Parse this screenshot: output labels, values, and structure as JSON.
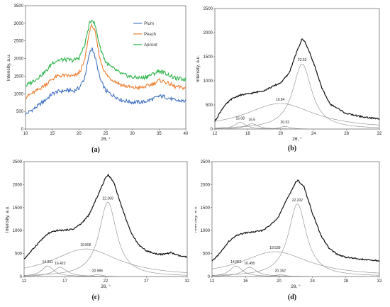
{
  "panels": [
    {
      "id": "a",
      "label": "(a)",
      "xlabel": "2θ, °",
      "ylabel": "Intensity, a.u.",
      "xlim": [
        10,
        40
      ],
      "ylim": [
        0,
        3500
      ],
      "xticks": [
        10,
        15,
        20,
        25,
        30,
        35,
        40
      ],
      "yticks": [
        0,
        500,
        1000,
        1500,
        2000,
        2500,
        3000,
        3500
      ],
      "series": [
        {
          "name": "Plum",
          "color": "#4472c4",
          "points": [
            [
              10,
              420
            ],
            [
              12,
              620
            ],
            [
              14,
              860
            ],
            [
              15,
              1000
            ],
            [
              16,
              1060
            ],
            [
              17,
              1080
            ],
            [
              18,
              1100
            ],
            [
              19,
              1080
            ],
            [
              20,
              1160
            ],
            [
              21,
              1420
            ],
            [
              22,
              2150
            ],
            [
              22.5,
              2300
            ],
            [
              23,
              2050
            ],
            [
              24,
              1400
            ],
            [
              25,
              1090
            ],
            [
              26,
              990
            ],
            [
              28,
              820
            ],
            [
              30,
              760
            ],
            [
              32,
              760
            ],
            [
              34,
              860
            ],
            [
              35,
              930
            ],
            [
              36,
              920
            ],
            [
              38,
              810
            ],
            [
              40,
              790
            ]
          ]
        },
        {
          "name": "Peach",
          "color": "#ed7d31",
          "points": [
            [
              10,
              900
            ],
            [
              12,
              1080
            ],
            [
              14,
              1290
            ],
            [
              15,
              1420
            ],
            [
              16,
              1500
            ],
            [
              17,
              1520
            ],
            [
              18,
              1510
            ],
            [
              19,
              1500
            ],
            [
              20,
              1580
            ],
            [
              21,
              1900
            ],
            [
              22,
              2800
            ],
            [
              22.5,
              2950
            ],
            [
              23,
              2750
            ],
            [
              24,
              1950
            ],
            [
              25,
              1560
            ],
            [
              26,
              1420
            ],
            [
              28,
              1250
            ],
            [
              30,
              1170
            ],
            [
              32,
              1180
            ],
            [
              34,
              1290
            ],
            [
              35,
              1380
            ],
            [
              36,
              1350
            ],
            [
              38,
              1200
            ],
            [
              40,
              1160
            ]
          ]
        },
        {
          "name": "Apricot",
          "color": "#2cb34a",
          "points": [
            [
              10,
              1220
            ],
            [
              12,
              1420
            ],
            [
              14,
              1660
            ],
            [
              15,
              1880
            ],
            [
              16,
              1950
            ],
            [
              17,
              1970
            ],
            [
              18,
              1960
            ],
            [
              19,
              1950
            ],
            [
              20,
              2020
            ],
            [
              21,
              2340
            ],
            [
              22,
              3000
            ],
            [
              22.5,
              3120
            ],
            [
              23,
              2950
            ],
            [
              24,
              2300
            ],
            [
              25,
              1900
            ],
            [
              26,
              1760
            ],
            [
              28,
              1560
            ],
            [
              30,
              1470
            ],
            [
              32,
              1450
            ],
            [
              34,
              1570
            ],
            [
              35,
              1650
            ],
            [
              36,
              1600
            ],
            [
              38,
              1440
            ],
            [
              40,
              1400
            ]
          ]
        }
      ]
    },
    {
      "id": "b",
      "label": "(b)",
      "xlabel": "2θ, °",
      "ylabel": "Intensity, a.u.",
      "xlim": [
        12,
        32
      ],
      "ylim": [
        0,
        2500
      ],
      "xticks": [
        12,
        16,
        20,
        24,
        28,
        32
      ],
      "yticks": [
        0,
        500,
        1000,
        1500,
        2000,
        2500
      ],
      "peaks": [
        {
          "center": 15.08,
          "label": "15.08",
          "height": 140,
          "width": 0.8
        },
        {
          "center": 16.5,
          "label": "16.5",
          "height": 110,
          "width": 0.9
        },
        {
          "center": 19.94,
          "label": "19.94",
          "height": 530,
          "width": 5.2
        },
        {
          "center": 20.52,
          "label": "20.52",
          "height": 55,
          "width": 0.7
        },
        {
          "center": 22.62,
          "label": "22.62",
          "height": 1350,
          "width": 1.4
        }
      ],
      "measured": [
        [
          12,
          160
        ],
        [
          13,
          450
        ],
        [
          14,
          620
        ],
        [
          15,
          700
        ],
        [
          16,
          730
        ],
        [
          17,
          760
        ],
        [
          18,
          800
        ],
        [
          19,
          880
        ],
        [
          20,
          960
        ],
        [
          21,
          1150
        ],
        [
          22,
          1620
        ],
        [
          22.6,
          1870
        ],
        [
          23,
          1800
        ],
        [
          24,
          1380
        ],
        [
          25,
          850
        ],
        [
          26,
          520
        ],
        [
          28,
          320
        ],
        [
          30,
          250
        ],
        [
          32,
          210
        ]
      ]
    },
    {
      "id": "c",
      "label": "(c)",
      "xlabel": "2θ, °",
      "ylabel": "Intensity, a.u.",
      "xlim": [
        12,
        32
      ],
      "ylim": [
        0,
        2500
      ],
      "xticks": [
        12,
        17,
        22,
        27,
        32
      ],
      "yticks": [
        0,
        500,
        1000,
        1500,
        2000,
        2500
      ],
      "peaks": [
        {
          "center": 14.891,
          "label": "14.891",
          "height": 230,
          "width": 0.9
        },
        {
          "center": 16.422,
          "label": "16.422",
          "height": 200,
          "width": 1.0
        },
        {
          "center": 19.556,
          "label": "19.556",
          "height": 600,
          "width": 5.0
        },
        {
          "center": 20.986,
          "label": "20.986",
          "height": 40,
          "width": 0.7
        },
        {
          "center": 22.269,
          "label": "22.269",
          "height": 1620,
          "width": 1.3
        }
      ],
      "measured": [
        [
          12,
          380
        ],
        [
          13,
          580
        ],
        [
          14,
          780
        ],
        [
          15,
          940
        ],
        [
          16,
          1000
        ],
        [
          17,
          1010
        ],
        [
          18,
          1030
        ],
        [
          19,
          1150
        ],
        [
          20,
          1350
        ],
        [
          21,
          1750
        ],
        [
          22,
          2150
        ],
        [
          22.3,
          2220
        ],
        [
          23,
          2050
        ],
        [
          24,
          1500
        ],
        [
          25,
          1000
        ],
        [
          26,
          700
        ],
        [
          27,
          560
        ],
        [
          28,
          500
        ],
        [
          29,
          480
        ],
        [
          30,
          520
        ],
        [
          31,
          450
        ],
        [
          32,
          420
        ]
      ]
    },
    {
      "id": "d",
      "label": "(d)",
      "xlabel": "2θ, °",
      "ylabel": "Intensity, a.u.",
      "xlim": [
        12,
        32
      ],
      "ylim": [
        0,
        2500
      ],
      "xticks": [
        12,
        16,
        20,
        24,
        28,
        32
      ],
      "yticks": [
        0,
        500,
        1000,
        1500,
        2000,
        2500
      ],
      "peaks": [
        {
          "center": 14.869,
          "label": "14.869",
          "height": 230,
          "width": 0.9
        },
        {
          "center": 16.495,
          "label": "16.495",
          "height": 200,
          "width": 1.0
        },
        {
          "center": 19.539,
          "label": "19.539",
          "height": 540,
          "width": 5.0
        },
        {
          "center": 20.162,
          "label": "20.162",
          "height": 40,
          "width": 0.7
        },
        {
          "center": 22.202,
          "label": "22.202",
          "height": 1580,
          "width": 1.3
        }
      ],
      "measured": [
        [
          12,
          330
        ],
        [
          13,
          520
        ],
        [
          14,
          760
        ],
        [
          15,
          900
        ],
        [
          16,
          950
        ],
        [
          17,
          970
        ],
        [
          18,
          1000
        ],
        [
          19,
          1120
        ],
        [
          20,
          1320
        ],
        [
          21,
          1700
        ],
        [
          22,
          2050
        ],
        [
          22.3,
          2090
        ],
        [
          23,
          1950
        ],
        [
          24,
          1380
        ],
        [
          25,
          900
        ],
        [
          26,
          610
        ],
        [
          27,
          480
        ],
        [
          28,
          420
        ],
        [
          30,
          370
        ],
        [
          32,
          340
        ]
      ]
    }
  ],
  "chart_data": [
    {
      "type": "line",
      "panel": "(a)",
      "xlabel": "2θ, °",
      "ylabel": "Intensity, a.u.",
      "xlim": [
        10,
        40
      ],
      "ylim": [
        0,
        3500
      ],
      "legend": "top-right",
      "series": [
        {
          "name": "Plum"
        },
        {
          "name": "Peach"
        },
        {
          "name": "Apricot"
        }
      ]
    },
    {
      "type": "line",
      "panel": "(b)",
      "xlabel": "2θ, °",
      "ylabel": "Intensity, a.u.",
      "xlim": [
        12,
        32
      ],
      "ylim": [
        0,
        2500
      ],
      "peak_labels": [
        "15.08",
        "16.5",
        "19.94",
        "20.52",
        "22.62"
      ]
    },
    {
      "type": "line",
      "panel": "(c)",
      "xlabel": "2θ, °",
      "ylabel": "Intensity, a.u.",
      "xlim": [
        12,
        32
      ],
      "ylim": [
        0,
        2500
      ],
      "peak_labels": [
        "14.891",
        "16.422",
        "19.556",
        "20.986",
        "22.269"
      ]
    },
    {
      "type": "line",
      "panel": "(d)",
      "xlabel": "2θ, °",
      "ylabel": "Intensity, a.u.",
      "xlim": [
        12,
        32
      ],
      "ylim": [
        0,
        2500
      ],
      "peak_labels": [
        "14.869",
        "16.495",
        "19.539",
        "20.162",
        "22.202"
      ]
    }
  ]
}
